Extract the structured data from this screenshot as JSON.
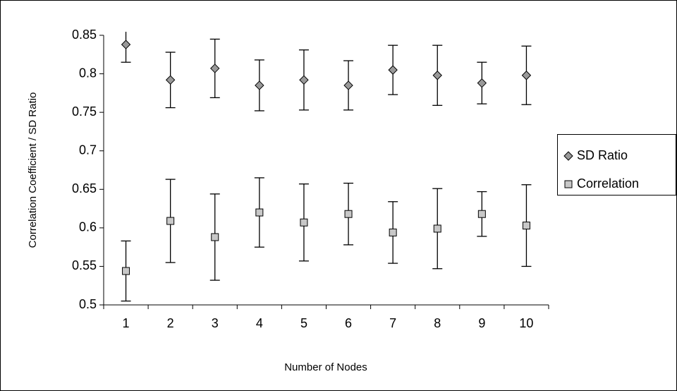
{
  "chart_data": {
    "type": "errorbar-scatter",
    "x_label": "Number of Nodes",
    "y_label": "Correlation Coefficient / SD Ratio",
    "categories": [
      "1",
      "2",
      "3",
      "4",
      "5",
      "6",
      "7",
      "8",
      "9",
      "10"
    ],
    "series": [
      {
        "name": "SD Ratio",
        "color": "#999999",
        "marker": "diamond",
        "values": [
          0.838,
          0.792,
          0.807,
          0.785,
          0.792,
          0.785,
          0.805,
          0.798,
          0.788,
          0.798
        ],
        "errors": [
          0.023,
          0.036,
          0.038,
          0.033,
          0.039,
          0.032,
          0.032,
          0.039,
          0.027,
          0.038
        ]
      },
      {
        "name": "Correlation",
        "color": "#c8c8c8",
        "marker": "square",
        "values": [
          0.544,
          0.609,
          0.588,
          0.62,
          0.607,
          0.618,
          0.594,
          0.599,
          0.618,
          0.603
        ],
        "errors": [
          0.039,
          0.054,
          0.056,
          0.045,
          0.05,
          0.04,
          0.04,
          0.052,
          0.029,
          0.053
        ]
      }
    ],
    "ylim": [
      0.5,
      0.85
    ],
    "yticks": [
      0.5,
      0.55,
      0.6,
      0.65,
      0.7,
      0.75,
      0.8,
      0.85
    ],
    "grid": false,
    "legend": "right"
  }
}
